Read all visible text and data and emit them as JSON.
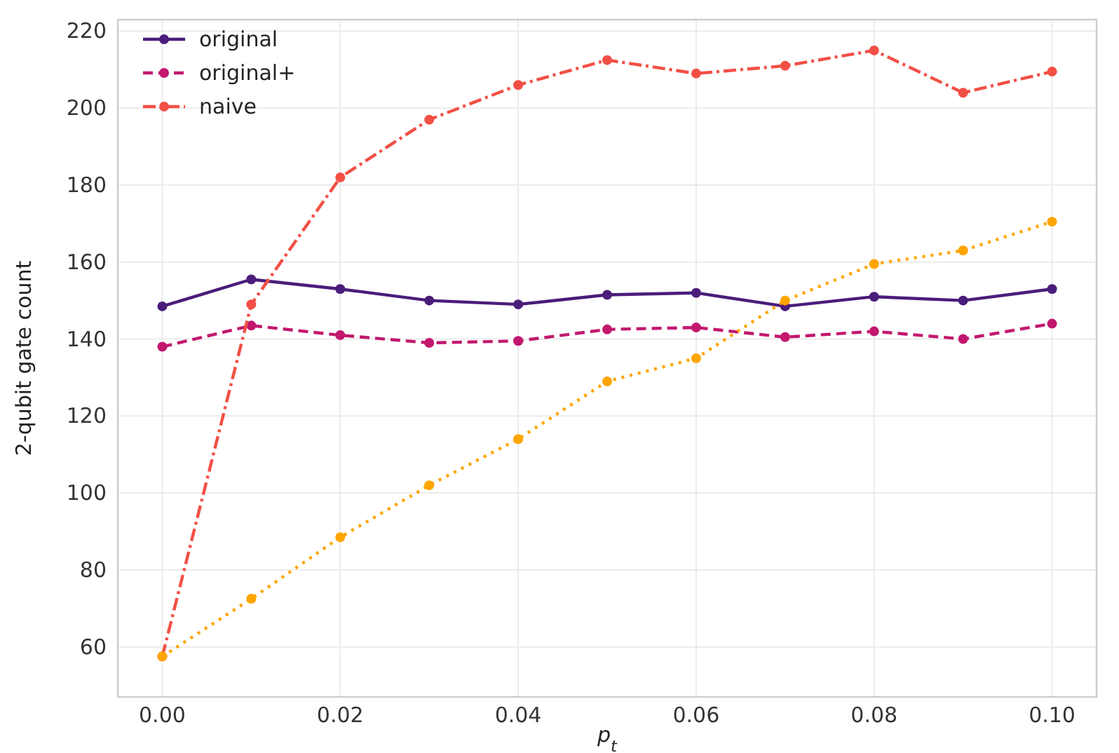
{
  "chart_data": {
    "type": "line",
    "xlabel": "p$_{t}$",
    "ylabel": "2-qubit gate count",
    "x": [
      0,
      0.01,
      0.02,
      0.03,
      0.04,
      0.05,
      0.06,
      0.07,
      0.08,
      0.09,
      0.1
    ],
    "series": [
      {
        "name": "original",
        "color": "#4a1d7a",
        "line_style": "solid",
        "values": [
          148.5,
          155.5,
          153,
          150,
          149,
          151.5,
          152,
          148.5,
          151,
          150,
          153
        ]
      },
      {
        "name": "original+",
        "color": "#c2186e",
        "line_style": "dashed",
        "values": [
          138,
          143.5,
          141,
          139,
          139.5,
          142.5,
          143,
          140.5,
          142,
          140,
          144
        ]
      },
      {
        "name": "naive",
        "color": "#f24f45",
        "line_style": "dashdot",
        "values": [
          57.5,
          149,
          182,
          197,
          206,
          212.5,
          209,
          211,
          215,
          204,
          209.5
        ]
      },
      {
        "color": "#ffa500",
        "line_style": "dotted",
        "values": [
          57.5,
          72.5,
          88.5,
          102,
          114,
          129,
          135,
          150,
          159.5,
          163,
          170.5
        ]
      }
    ],
    "xlim": [
      -0.005,
      0.105
    ],
    "xticks": [
      {
        "value": 0,
        "label": "0.00"
      },
      {
        "value": 0.02,
        "label": "0.02"
      },
      {
        "value": 0.04,
        "label": "0.04"
      },
      {
        "value": 0.06,
        "label": "0.06"
      },
      {
        "value": 0.08,
        "label": "0.08"
      },
      {
        "value": 0.1,
        "label": "0.10"
      }
    ],
    "ylim": [
      47,
      223
    ],
    "yticks": [
      60,
      80,
      100,
      120,
      140,
      160,
      180,
      200,
      220
    ],
    "grid": true,
    "legend": "top left",
    "marker": "circle"
  }
}
